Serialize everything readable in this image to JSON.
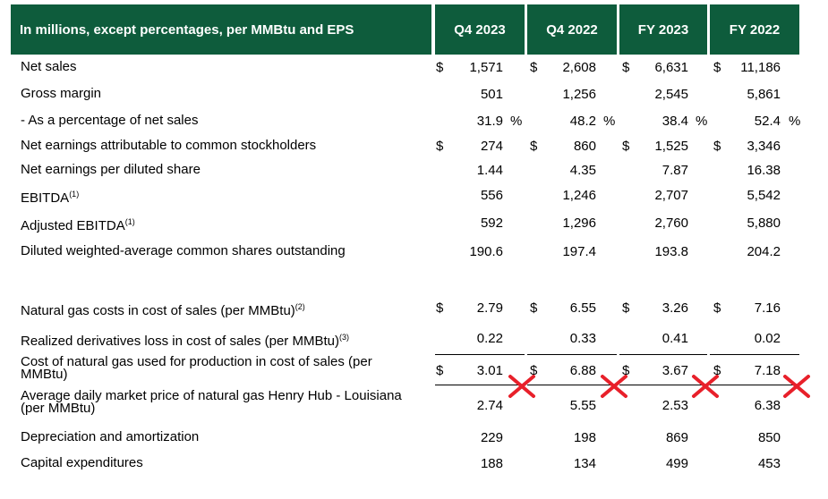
{
  "header": {
    "label": "In millions, except percentages, per MMBtu and EPS",
    "columns": [
      "Q4 2023",
      "Q4 2022",
      "FY 2023",
      "FY 2022"
    ]
  },
  "rows": [
    {
      "label": "Net sales",
      "values": [
        "1,571",
        "2,608",
        "6,631",
        "11,186"
      ],
      "cur": [
        "$",
        "$",
        "$",
        "$"
      ]
    },
    {
      "label": "Gross margin",
      "values": [
        "501",
        "1,256",
        "2,545",
        "5,861"
      ]
    },
    {
      "label": " - As a percentage of net sales",
      "values": [
        "31.9",
        "48.2",
        "38.4",
        "52.4"
      ],
      "pct": "%"
    },
    {
      "label": "Net earnings attributable to common stockholders",
      "values": [
        "274",
        "860",
        "1,525",
        "3,346"
      ],
      "cur": [
        "$",
        "$",
        "$",
        "$"
      ]
    },
    {
      "label": "Net earnings per diluted share",
      "values": [
        "1.44",
        "4.35",
        "7.87",
        "16.38"
      ]
    },
    {
      "label": "EBITDA",
      "sup": "(1)",
      "values": [
        "556",
        "1,246",
        "2,707",
        "5,542"
      ]
    },
    {
      "label": "Adjusted EBITDA",
      "sup": "(1)",
      "values": [
        "592",
        "1,296",
        "2,760",
        "5,880"
      ]
    },
    {
      "label": "Diluted weighted-average common shares outstanding",
      "values": [
        "190.6",
        "197.4",
        "193.8",
        "204.2"
      ]
    },
    {
      "label": "Natural gas costs in cost of sales (per MMBtu)",
      "sup": "(2)",
      "values": [
        "2.79",
        "6.55",
        "3.26",
        "7.16"
      ],
      "cur": [
        "$",
        "$",
        "$",
        "$"
      ]
    },
    {
      "label": "Realized derivatives loss in cost of sales (per MMBtu)",
      "sup": "(3)",
      "values": [
        "0.22",
        "0.33",
        "0.41",
        "0.02"
      ]
    },
    {
      "label": "Cost of natural gas used for production in cost of sales (per MMBtu)",
      "values": [
        "3.01",
        "6.88",
        "3.67",
        "7.18"
      ],
      "cur": [
        "$",
        "$",
        "$",
        "$"
      ]
    },
    {
      "label": "Average daily market price of natural gas Henry Hub - Louisiana (per MMBtu)",
      "values": [
        "2.74",
        "5.55",
        "2.53",
        "6.38"
      ]
    },
    {
      "label": "Depreciation and amortization",
      "values": [
        "229",
        "198",
        "869",
        "850"
      ]
    },
    {
      "label": "Capital expenditures",
      "values": [
        "188",
        "134",
        "499",
        "453"
      ]
    }
  ],
  "annotations": {
    "x_mark_color": "#e8202a"
  }
}
